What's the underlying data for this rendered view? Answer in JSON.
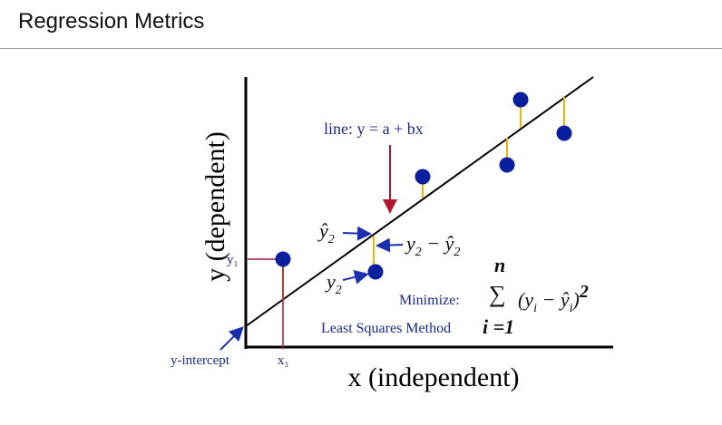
{
  "header": {
    "title": "Regression Metrics"
  },
  "diagram": {
    "y_axis_label": "y (dependent)",
    "x_axis_label": "x (independent)",
    "line_label": "line:  y = a + bx",
    "y1_label": "y₁",
    "x1_label": "x₁",
    "y_intercept_label": "y-intercept",
    "yhat2_label": "ŷ",
    "yhat2_sub": "2",
    "residual_label_a": "y",
    "residual_label_sub_a": "2",
    "residual_label_b": " − ŷ",
    "residual_label_sub_b": "2",
    "y2_label": "y",
    "y2_sub": "2",
    "minimize_label": "Minimize:",
    "least_squares_label": "Least Squares Method",
    "sum_top": "n",
    "sum_symbol": "∑",
    "sum_bottom": "i =1",
    "sum_term_a": "(y",
    "sum_term_sub_a": "i",
    "sum_term_b": " − ŷ",
    "sum_term_sub_b": "i",
    "sum_term_c": ")",
    "sum_term_exp": "2"
  },
  "colors": {
    "points": "#0a1f9e",
    "line": "#000000",
    "residual": "#f0b400",
    "annotation_arrow": "#1a2fb0",
    "down_arrow": "#b0182e",
    "guide": "#a01838",
    "text": "#1a2a8a"
  }
}
